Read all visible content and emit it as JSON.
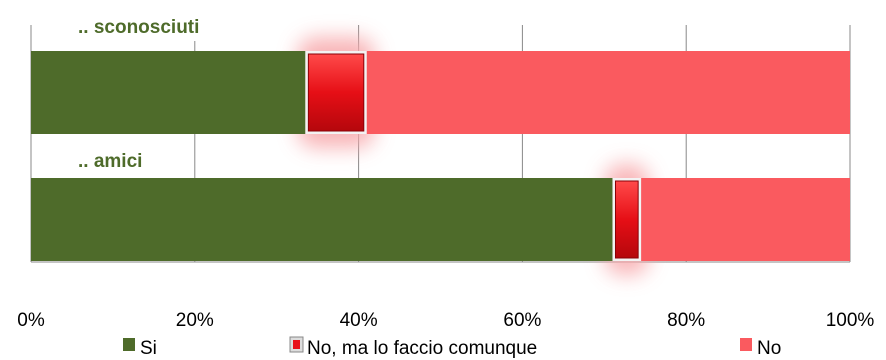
{
  "chart_data": {
    "type": "bar",
    "orientation": "horizontal",
    "stacked": "percent",
    "categories": [
      ".. sconosciuti",
      ".. amici"
    ],
    "series": [
      {
        "name": "Si",
        "values": [
          33.5,
          71
        ],
        "color": "#4e6b2a"
      },
      {
        "name": "No, ma lo faccio comunque",
        "values": [
          7.5,
          3.5
        ],
        "color": "#e8101a"
      },
      {
        "name": "No",
        "values": [
          59,
          25.5
        ],
        "color": "#fa5a5f"
      }
    ],
    "xlim": [
      0,
      100
    ],
    "xticks": [
      "0%",
      "20%",
      "40%",
      "60%",
      "80%",
      "100%"
    ],
    "grid": true,
    "legend": "bottom"
  }
}
